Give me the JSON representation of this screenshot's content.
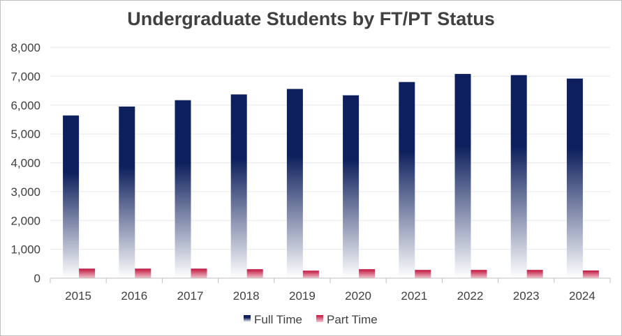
{
  "chart_data": {
    "type": "bar",
    "title": "Undergraduate Students by FT/PT Status",
    "xlabel": "",
    "ylabel": "",
    "categories": [
      "2015",
      "2016",
      "2017",
      "2018",
      "2019",
      "2020",
      "2021",
      "2022",
      "2023",
      "2024"
    ],
    "series": [
      {
        "name": "Full Time",
        "values": [
          5640,
          5950,
          6170,
          6370,
          6560,
          6340,
          6800,
          7080,
          7040,
          6920
        ],
        "color_top": "#0d1f5c",
        "color_bottom": "#ffffff"
      },
      {
        "name": "Part Time",
        "values": [
          330,
          330,
          330,
          310,
          260,
          310,
          285,
          285,
          285,
          265
        ],
        "color_top": "#c0143c",
        "color_bottom": "#ffffff"
      }
    ],
    "ylim": [
      0,
      8000
    ],
    "yticks": [
      0,
      1000,
      2000,
      3000,
      4000,
      5000,
      6000,
      7000,
      8000
    ],
    "ytick_labels": [
      "0",
      "1,000",
      "2,000",
      "3,000",
      "4,000",
      "5,000",
      "6,000",
      "7,000",
      "8,000"
    ],
    "grid": true,
    "legend_position": "bottom"
  }
}
